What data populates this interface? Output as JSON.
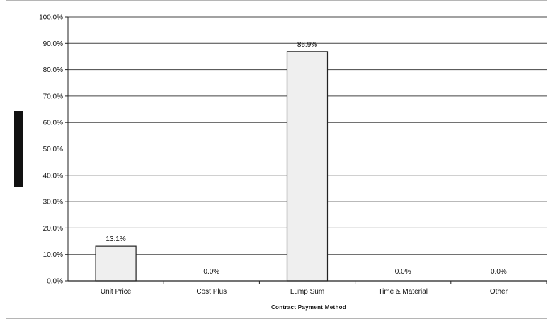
{
  "chart_data": {
    "type": "bar",
    "title": "",
    "xlabel": "Contract Payment Method",
    "ylabel": "",
    "categories": [
      "Unit Price",
      "Cost Plus",
      "Lump Sum",
      "Time & Material",
      "Other"
    ],
    "values": [
      13.1,
      0.0,
      86.9,
      0.0,
      0.0
    ],
    "data_labels": [
      "13.1%",
      "0.0%",
      "86.9%",
      "0.0%",
      "0.0%"
    ],
    "ylim": [
      0,
      100
    ],
    "yticks": [
      0,
      10,
      20,
      30,
      40,
      50,
      60,
      70,
      80,
      90,
      100
    ],
    "ytick_labels": [
      "0.0%",
      "10.0%",
      "20.0%",
      "30.0%",
      "40.0%",
      "50.0%",
      "60.0%",
      "70.0%",
      "80.0%",
      "90.0%",
      "100.0%"
    ],
    "grid": true,
    "legend": "none",
    "colors": {
      "bar_fill": "#efefef",
      "bar_stroke": "#222222",
      "grid": "#444444",
      "axis": "#222222",
      "frame": "#999999",
      "ylabel_marker": "#111111"
    }
  }
}
